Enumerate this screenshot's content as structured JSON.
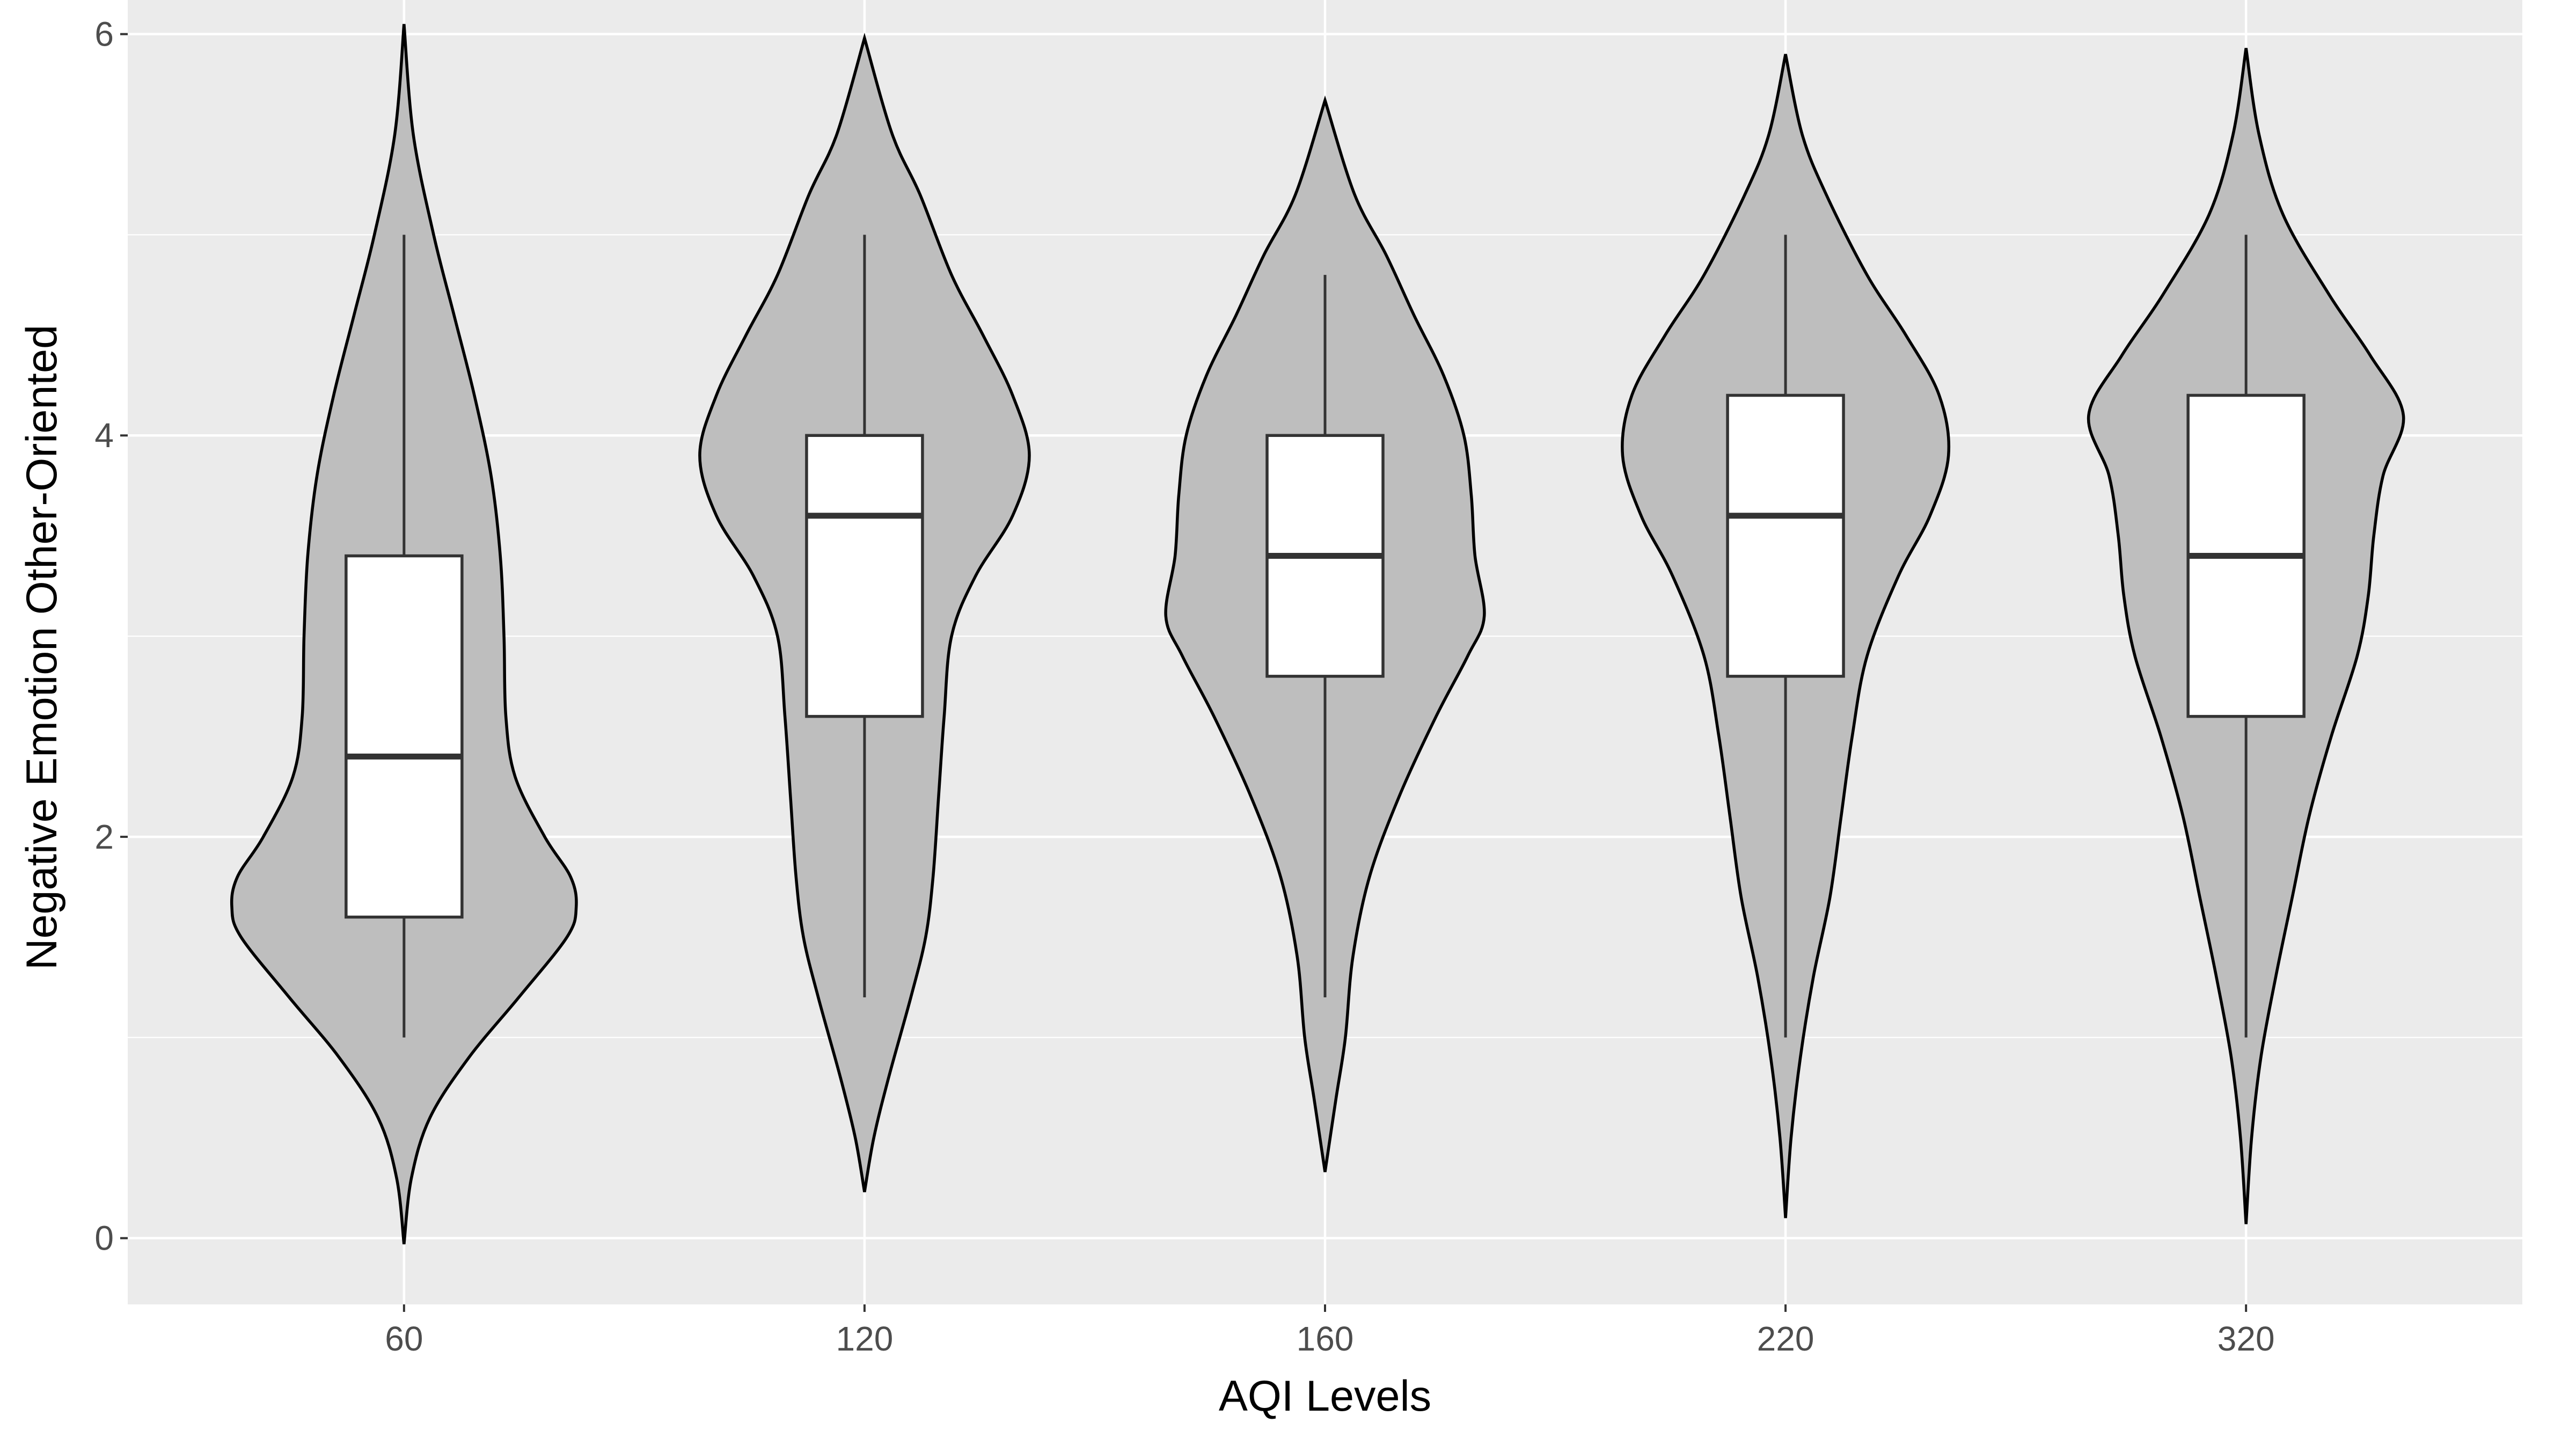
{
  "chart_data": {
    "type": "violin",
    "xlabel": "AQI Levels",
    "ylabel": "Negative Emotion Other-Oriented",
    "ylim": [
      -0.33,
      6.17
    ],
    "yticks": [
      0,
      2,
      4,
      6
    ],
    "grid": true,
    "legend": "none",
    "colors": {
      "panel": "#EBEBEB",
      "grid": "#FFFFFF",
      "violin_fill": "#BEBEBE",
      "violin_stroke": "#000000",
      "box_fill": "#FFFFFF",
      "box_stroke": "#333333",
      "tick_text": "#4D4D4D",
      "axis_title": "#000000"
    },
    "categories": [
      "60",
      "120",
      "160",
      "220",
      "320"
    ],
    "groups": [
      {
        "label": "60",
        "box": {
          "min": 1.0,
          "q1": 1.6,
          "median": 2.4,
          "q3": 3.4,
          "max": 5.0
        },
        "violin_range": [
          -0.03,
          6.05
        ],
        "density": [
          [
            -0.03,
            0.0
          ],
          [
            0.3,
            0.04
          ],
          [
            0.6,
            0.14
          ],
          [
            0.9,
            0.35
          ],
          [
            1.2,
            0.62
          ],
          [
            1.5,
            0.88
          ],
          [
            1.65,
            0.93
          ],
          [
            1.8,
            0.9
          ],
          [
            2.0,
            0.76
          ],
          [
            2.3,
            0.6
          ],
          [
            2.6,
            0.55
          ],
          [
            3.0,
            0.54
          ],
          [
            3.4,
            0.52
          ],
          [
            3.8,
            0.47
          ],
          [
            4.2,
            0.38
          ],
          [
            4.6,
            0.27
          ],
          [
            5.0,
            0.16
          ],
          [
            5.5,
            0.05
          ],
          [
            6.05,
            0.0
          ]
        ]
      },
      {
        "label": "120",
        "box": {
          "min": 1.2,
          "q1": 2.6,
          "median": 3.6,
          "q3": 4.0,
          "max": 5.0
        },
        "violin_range": [
          0.23,
          5.98
        ],
        "density": [
          [
            0.23,
            0.0
          ],
          [
            0.5,
            0.05
          ],
          [
            0.8,
            0.13
          ],
          [
            1.2,
            0.25
          ],
          [
            1.5,
            0.33
          ],
          [
            1.8,
            0.37
          ],
          [
            2.2,
            0.4
          ],
          [
            2.6,
            0.43
          ],
          [
            3.0,
            0.47
          ],
          [
            3.3,
            0.6
          ],
          [
            3.6,
            0.8
          ],
          [
            3.9,
            0.89
          ],
          [
            4.2,
            0.8
          ],
          [
            4.5,
            0.64
          ],
          [
            4.8,
            0.47
          ],
          [
            5.2,
            0.3
          ],
          [
            5.5,
            0.15
          ],
          [
            5.98,
            0.0
          ]
        ]
      },
      {
        "label": "160",
        "box": {
          "min": 1.2,
          "q1": 2.8,
          "median": 3.4,
          "q3": 4.0,
          "max": 4.8
        },
        "violin_range": [
          0.33,
          5.67
        ],
        "density": [
          [
            0.33,
            0.0
          ],
          [
            0.7,
            0.06
          ],
          [
            1.0,
            0.11
          ],
          [
            1.4,
            0.15
          ],
          [
            1.8,
            0.24
          ],
          [
            2.2,
            0.4
          ],
          [
            2.6,
            0.6
          ],
          [
            2.9,
            0.77
          ],
          [
            3.1,
            0.86
          ],
          [
            3.4,
            0.81
          ],
          [
            3.7,
            0.79
          ],
          [
            4.0,
            0.75
          ],
          [
            4.3,
            0.64
          ],
          [
            4.6,
            0.48
          ],
          [
            4.9,
            0.33
          ],
          [
            5.2,
            0.16
          ],
          [
            5.67,
            0.0
          ]
        ]
      },
      {
        "label": "220",
        "box": {
          "min": 1.0,
          "q1": 2.8,
          "median": 3.6,
          "q3": 4.2,
          "max": 5.0
        },
        "violin_range": [
          0.1,
          5.9
        ],
        "density": [
          [
            0.1,
            0.0
          ],
          [
            0.5,
            0.03
          ],
          [
            0.9,
            0.08
          ],
          [
            1.3,
            0.15
          ],
          [
            1.7,
            0.24
          ],
          [
            2.1,
            0.3
          ],
          [
            2.5,
            0.36
          ],
          [
            2.9,
            0.44
          ],
          [
            3.3,
            0.61
          ],
          [
            3.6,
            0.78
          ],
          [
            3.9,
            0.88
          ],
          [
            4.2,
            0.83
          ],
          [
            4.5,
            0.65
          ],
          [
            4.8,
            0.44
          ],
          [
            5.2,
            0.22
          ],
          [
            5.5,
            0.09
          ],
          [
            5.9,
            0.0
          ]
        ]
      },
      {
        "label": "320",
        "box": {
          "min": 1.0,
          "q1": 2.6,
          "median": 3.4,
          "q3": 4.2,
          "max": 5.0
        },
        "violin_range": [
          0.07,
          5.93
        ],
        "density": [
          [
            0.07,
            0.0
          ],
          [
            0.5,
            0.03
          ],
          [
            0.9,
            0.08
          ],
          [
            1.3,
            0.16
          ],
          [
            1.7,
            0.25
          ],
          [
            2.1,
            0.34
          ],
          [
            2.5,
            0.46
          ],
          [
            2.9,
            0.6
          ],
          [
            3.2,
            0.66
          ],
          [
            3.5,
            0.69
          ],
          [
            3.8,
            0.74
          ],
          [
            4.1,
            0.85
          ],
          [
            4.4,
            0.67
          ],
          [
            4.7,
            0.45
          ],
          [
            5.1,
            0.2
          ],
          [
            5.5,
            0.07
          ],
          [
            5.93,
            0.0
          ]
        ]
      }
    ]
  }
}
